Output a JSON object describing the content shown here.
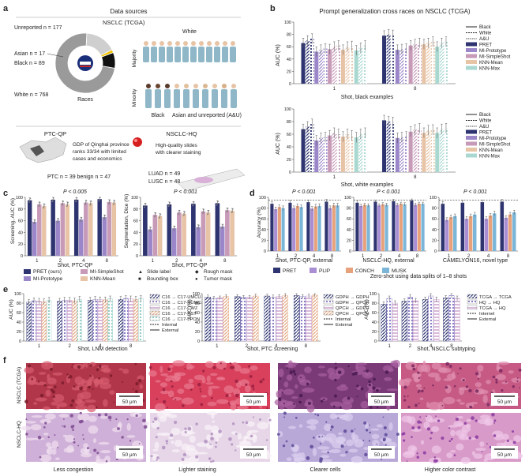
{
  "panels": {
    "a": {
      "letter": "a",
      "title": "Data sources",
      "nsclc_title": "NSCLC (TCGA)",
      "donut_center": "Races",
      "race_labels": [
        "Unreported n = 177",
        "Asian n = 17",
        "Black n = 89",
        "White n = 768"
      ],
      "race_values": [
        177,
        17,
        89,
        768
      ],
      "race_colors": [
        "#cfcfcf",
        "#f2c200",
        "#111111",
        "#9a9a9a"
      ],
      "white": "White",
      "majority": "Majority",
      "minority": "Minority",
      "black": "Black",
      "asian_unrep": "Asian and unreported (A&U)",
      "ptc_title": "PTC-QP",
      "ptc_note": [
        "GDP of Qinghai province",
        "ranks 33/34 with limited",
        "cases and economics"
      ],
      "ptc_counts": "PTC n = 39 benign n = 47",
      "hq_title": "NSCLC-HQ",
      "hq_note": [
        "High-quality slides",
        "with clearer staining"
      ],
      "luad": "LUAD n = 49",
      "lusc": "LUSC n = 48"
    },
    "b": {
      "letter": "b",
      "title": "Prompt generalization cross races on NSCLC (TCGA)",
      "ylabel": "AUC (%)",
      "xlabel_top": "Shot, black examples",
      "xlabel_bottom": "Shot, white examples",
      "legend": [
        "Black",
        "White",
        "A&U",
        "PRET",
        "MI-Prototype",
        "MI-SimpleShot",
        "KNN-Mean",
        "KNN-Max"
      ]
    },
    "c": {
      "letter": "c",
      "pval1": "P < 0.005",
      "pval2": "P < 0.001",
      "ylabel1": "Screening, AUC (%)",
      "ylabel2": "Segmentation, Dice (%)",
      "xlabel1": "Shot, PTC-QP",
      "xlabel2": "Shot, PTC-QP",
      "legend": [
        "PRET (ours)",
        "MI-SimpleShot",
        "Slide label",
        "Rough mask",
        "MI-Prototype",
        "KNN-Mean",
        "Bounding box",
        "Tumor mask"
      ]
    },
    "d": {
      "letter": "d",
      "pvals": [
        "P < 0.001",
        "P < 0.001",
        "P < 0.001"
      ],
      "ylabel": "Accuracy (%)",
      "xlabels": [
        "Shot, PTC-QP, external",
        "NSCLC-HQ, external",
        "CAMELYON16, novel type"
      ],
      "legend": [
        "PRET",
        "PLIP",
        "CONCH",
        "MUSK"
      ],
      "legend_note": "Zero-shot using data splits of 1–8 shots"
    },
    "e": {
      "letter": "e",
      "ylabel": "AUC (%)",
      "xlabels": [
        "Shot, LNM detection",
        "Shot, PTC screening",
        "Shot, NSCLC subtyping"
      ],
      "legend1": [
        "C16 → C17-UMCU",
        "C16 → C17-RUMC",
        "C16 → C17-CWZ",
        "C16 → C17-RST",
        "C16 → C17-LPON",
        "Internal",
        "External"
      ],
      "legend2": [
        "GDPH → GDPH",
        "GDPH → QPCH",
        "QPCH → GDPH",
        "QPCH → QPCH",
        "Internal",
        "External"
      ],
      "legend3": [
        "TCGA → TCGA",
        "HQ → HQ",
        "TCGA → HQ",
        "Internel",
        "External"
      ]
    },
    "f": {
      "letter": "f",
      "row_labels": [
        "NSCLC (TCGA)",
        "NSCLC-HQ"
      ],
      "scalebar": "50 μm",
      "captions": [
        "Less congestion",
        "Lighter staining",
        "Clearer cells",
        "Higher color contrast"
      ]
    }
  },
  "chart_data": [
    {
      "type": "bar",
      "panel": "b-top",
      "title": "Prompt generalization cross races on NSCLC (TCGA)",
      "xlabel": "Shot, black examples",
      "ylabel": "AUC (%)",
      "ylim": [
        0,
        100
      ],
      "yticks": [
        0,
        20,
        40,
        60,
        80,
        100
      ],
      "categories": [
        "1",
        "8"
      ],
      "series": [
        {
          "name": "PRET",
          "values": [
            [
              66,
              70,
              73
            ],
            [
              78,
              80,
              79
            ]
          ]
        },
        {
          "name": "MI-Prototype",
          "values": [
            [
              52,
              55,
              57
            ],
            [
              55,
              56,
              57
            ]
          ]
        },
        {
          "name": "MI-SimpleShot",
          "values": [
            [
              56,
              60,
              62
            ],
            [
              62,
              64,
              66
            ]
          ]
        },
        {
          "name": "KNN-Mean",
          "values": [
            [
              55,
              60,
              61
            ],
            [
              64,
              66,
              68
            ]
          ]
        },
        {
          "name": "KNN-Max",
          "values": [
            [
              54,
              58,
              62
            ],
            [
              60,
              66,
              68
            ]
          ]
        }
      ]
    },
    {
      "type": "bar",
      "panel": "b-bottom",
      "xlabel": "Shot, white examples",
      "ylabel": "AUC (%)",
      "ylim": [
        0,
        100
      ],
      "yticks": [
        0,
        20,
        40,
        60,
        80,
        100
      ],
      "categories": [
        "1",
        "8"
      ],
      "series": [
        {
          "name": "PRET",
          "values": [
            [
              68,
              72,
              76
            ],
            [
              82,
              80,
              79
            ]
          ]
        },
        {
          "name": "MI-Prototype",
          "values": [
            [
              50,
              54,
              55
            ],
            [
              54,
              55,
              56
            ]
          ]
        },
        {
          "name": "MI-SimpleShot",
          "values": [
            [
              58,
              62,
              60
            ],
            [
              64,
              67,
              69
            ]
          ]
        },
        {
          "name": "KNN-Mean",
          "values": [
            [
              56,
              60,
              58
            ],
            [
              62,
              66,
              67
            ]
          ]
        },
        {
          "name": "KNN-Max",
          "values": [
            [
              55,
              60,
              62
            ],
            [
              62,
              68,
              69
            ]
          ]
        }
      ]
    },
    {
      "type": "bar",
      "panel": "c-left",
      "xlabel": "Shot, PTC-QP",
      "ylabel": "Screening, AUC (%)",
      "ylim": [
        0,
        100
      ],
      "yticks": [
        0,
        20,
        40,
        60,
        80,
        100
      ],
      "categories": [
        "1",
        "2",
        "4",
        "8"
      ],
      "series": [
        {
          "name": "PRET (ours)",
          "values": [
            95,
            96,
            96,
            97
          ]
        },
        {
          "name": "MI-Prototype",
          "values": [
            58,
            60,
            62,
            66
          ]
        },
        {
          "name": "MI-SimpleShot",
          "values": [
            88,
            90,
            91,
            92
          ]
        },
        {
          "name": "KNN-Mean",
          "values": [
            85,
            88,
            90,
            91
          ]
        }
      ]
    },
    {
      "type": "bar",
      "panel": "c-right",
      "xlabel": "Shot, PTC-QP",
      "ylabel": "Segmentation, Dice (%)",
      "ylim": [
        0,
        100
      ],
      "yticks": [
        0,
        20,
        40,
        60,
        80,
        100
      ],
      "categories": [
        "1",
        "2",
        "4",
        "8"
      ],
      "series": [
        {
          "name": "PRET (ours)",
          "values": [
            86,
            88,
            89,
            90
          ]
        },
        {
          "name": "MI-Prototype",
          "values": [
            45,
            47,
            49,
            50
          ]
        },
        {
          "name": "MI-SimpleShot",
          "values": [
            70,
            74,
            76,
            78
          ]
        },
        {
          "name": "KNN-Mean",
          "values": [
            68,
            72,
            74,
            77
          ]
        }
      ]
    },
    {
      "type": "bar",
      "panel": "d-1",
      "xlabel": "Shot, PTC-QP, external",
      "ylabel": "Accuracy (%)",
      "ylim": [
        0,
        100
      ],
      "yticks": [
        0,
        20,
        40,
        60,
        80,
        100
      ],
      "categories": [
        "1",
        "2",
        "4",
        "8"
      ],
      "series": [
        {
          "name": "PRET",
          "values": [
            88,
            90,
            91,
            92
          ]
        },
        {
          "name": "PLIP",
          "values": [
            78,
            80,
            79,
            80
          ]
        },
        {
          "name": "CONCH",
          "values": [
            82,
            84,
            83,
            85
          ]
        },
        {
          "name": "MUSK",
          "values": [
            80,
            82,
            84,
            85
          ]
        }
      ]
    },
    {
      "type": "bar",
      "panel": "d-2",
      "xlabel": "NSCLC-HQ, external",
      "ylim": [
        0,
        100
      ],
      "yticks": [
        0,
        20,
        40,
        60,
        80,
        100
      ],
      "categories": [
        "1",
        "2",
        "4",
        "8"
      ],
      "series": [
        {
          "name": "PRET",
          "values": [
            90,
            92,
            93,
            94
          ]
        },
        {
          "name": "PLIP",
          "values": [
            84,
            85,
            86,
            86
          ]
        },
        {
          "name": "CONCH",
          "values": [
            86,
            87,
            88,
            88
          ]
        },
        {
          "name": "MUSK",
          "values": [
            85,
            86,
            87,
            88
          ]
        }
      ]
    },
    {
      "type": "bar",
      "panel": "d-3",
      "xlabel": "CAMELYON16, novel type",
      "ylim": [
        0,
        100
      ],
      "yticks": [
        0,
        20,
        40,
        60,
        80,
        100
      ],
      "categories": [
        "1",
        "2",
        "4",
        "8"
      ],
      "series": [
        {
          "name": "PRET",
          "values": [
            88,
            90,
            91,
            92
          ]
        },
        {
          "name": "PLIP",
          "values": [
            58,
            60,
            60,
            62
          ]
        },
        {
          "name": "CONCH",
          "values": [
            63,
            65,
            66,
            68
          ]
        },
        {
          "name": "MUSK",
          "values": [
            65,
            68,
            70,
            72
          ]
        }
      ]
    },
    {
      "type": "bar",
      "panel": "e-1",
      "xlabel": "Shot, LNM detection",
      "ylabel": "AUC (%)",
      "ylim": [
        0,
        100
      ],
      "yticks": [
        0,
        20,
        40,
        60,
        80,
        100
      ],
      "categories": [
        "1",
        "2",
        "4",
        "8"
      ],
      "series": [
        {
          "name": "C16 → C17-UMCU",
          "values": [
            82,
            84,
            86,
            88
          ]
        },
        {
          "name": "C16 → C17-RUMC",
          "values": [
            85,
            86,
            88,
            90
          ]
        },
        {
          "name": "C16 → C17-CWZ",
          "values": [
            84,
            86,
            87,
            89
          ]
        },
        {
          "name": "C16 → C17-RST",
          "values": [
            83,
            85,
            87,
            88
          ]
        },
        {
          "name": "C16 → C17-LPON",
          "values": [
            86,
            88,
            89,
            90
          ]
        }
      ]
    },
    {
      "type": "bar",
      "panel": "e-2",
      "xlabel": "Shot, PTC screening",
      "ylabel": "AUC (%)",
      "ylim": [
        0,
        100
      ],
      "yticks": [
        0,
        20,
        40,
        60,
        80,
        100
      ],
      "categories": [
        "1",
        "2",
        "4",
        "8"
      ],
      "series": [
        {
          "name": "GDPH → GDPH",
          "values": [
            93,
            94,
            95,
            96
          ]
        },
        {
          "name": "GDPH → QPCH",
          "values": [
            90,
            92,
            93,
            94
          ]
        },
        {
          "name": "QPCH → GDPH",
          "values": [
            91,
            92,
            94,
            95
          ]
        },
        {
          "name": "QPCH → QPCH",
          "values": [
            94,
            95,
            96,
            97
          ]
        }
      ]
    },
    {
      "type": "bar",
      "panel": "e-3",
      "xlabel": "Shot, NSCLC subtyping",
      "ylabel": "AUC (%)",
      "ylim": [
        0,
        100
      ],
      "yticks": [
        0,
        20,
        40,
        60,
        80,
        100
      ],
      "categories": [
        "1",
        "2",
        "4",
        "8"
      ],
      "series": [
        {
          "name": "TCGA → TCGA",
          "values": [
            78,
            84,
            88,
            91
          ]
        },
        {
          "name": "HQ → HQ",
          "values": [
            90,
            93,
            95,
            96
          ]
        },
        {
          "name": "TCGA → HQ",
          "values": [
            80,
            85,
            88,
            90
          ]
        }
      ]
    }
  ],
  "colors": {
    "pret": "#2e3470",
    "proto": "#9a86c8",
    "simpleshot": "#c79ab8",
    "knnmean": "#e8c4a6",
    "knnmax": "#a9d8d0",
    "plip": "#a98ed4",
    "conch": "#e7a27c",
    "musk": "#7bb6d8"
  }
}
